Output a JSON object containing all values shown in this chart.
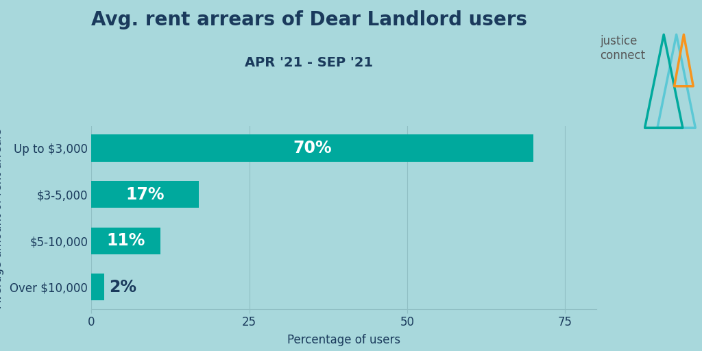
{
  "title": "Avg. rent arrears of Dear Landlord users",
  "subtitle": "APR '21 - SEP '21",
  "categories": [
    "Over $10,000",
    "$5-10,000",
    "$3-5,000",
    "Up to $3,000"
  ],
  "values": [
    2,
    11,
    17,
    70
  ],
  "labels": [
    "2%",
    "11%",
    "17%",
    "70%"
  ],
  "bar_color": "#00A99D",
  "background_color": "#A8D8DC",
  "title_color": "#1a3a5c",
  "subtitle_color": "#1a3a5c",
  "xlabel": "Percentage of users",
  "ylabel": "Average amount of rent arrears",
  "text_color_inside": "#ffffff",
  "text_color_outside": "#1a3a5c",
  "tick_color": "#1a3a5c",
  "logo_text_color": "#555555",
  "title_fontsize": 20,
  "subtitle_fontsize": 14,
  "label_fontsize": 17,
  "axis_label_fontsize": 12,
  "tick_fontsize": 12,
  "xlim": [
    0,
    80
  ],
  "xticks": [
    0,
    25,
    50,
    75
  ],
  "logo_tri_teal": "#00A99D",
  "logo_tri_blue": "#5BC8D5",
  "logo_tri_orange": "#F7941D"
}
